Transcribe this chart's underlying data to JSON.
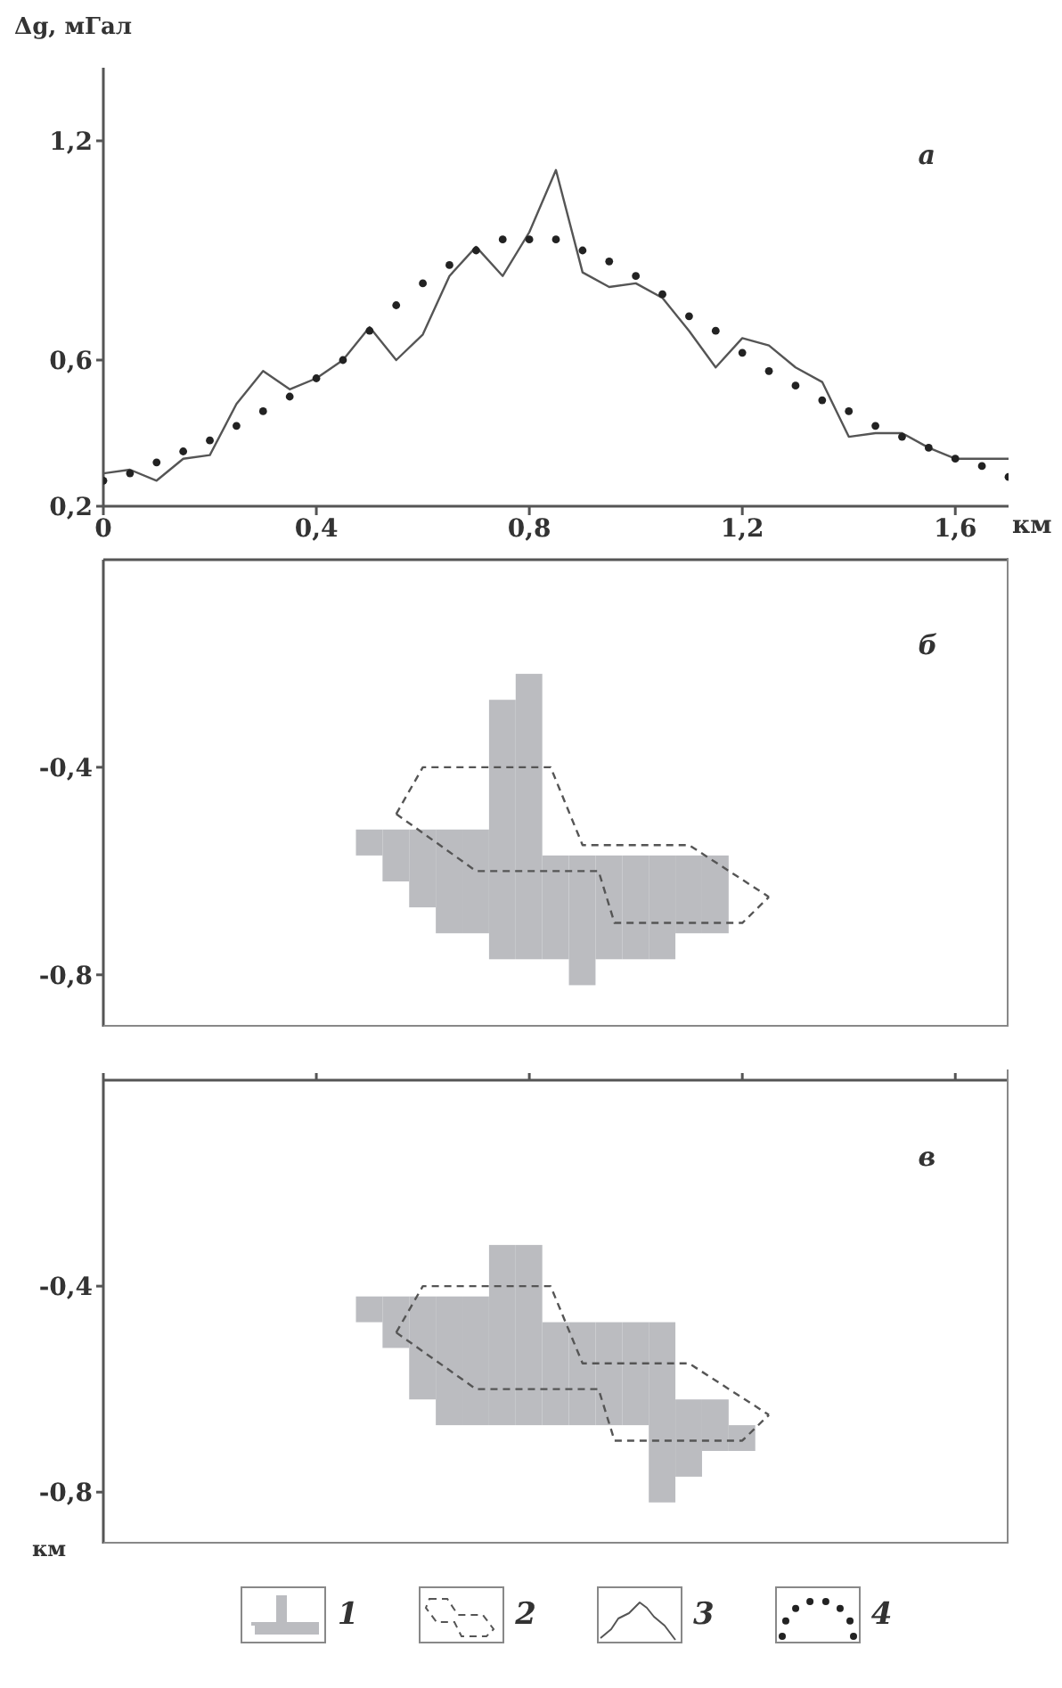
{
  "chart_data": [
    {
      "type": "line",
      "ylabel": "Δg, мГал",
      "xlabel": "км",
      "annotations": [
        "а"
      ],
      "legend": "bottom",
      "xlim": [
        0,
        1.7
      ],
      "xticks": [
        0,
        {
          "value": 0.4,
          "label": "0,4"
        },
        {
          "value": 0.8,
          "label": "0,8"
        },
        {
          "value": 1.2,
          "label": "1,2"
        },
        {
          "value": 1.6,
          "label": "1,6"
        }
      ],
      "ylim": [
        0.2,
        1.4
      ],
      "yticks": [
        {
          "value": 0.2,
          "label": "0,2"
        },
        {
          "value": 0.6,
          "label": "0,6"
        },
        {
          "value": 1.2,
          "label": "1,2"
        }
      ],
      "series": [
        {
          "name": "3",
          "line_style": "solid",
          "marker": "none",
          "color": "#555555",
          "x": [
            0,
            0.05,
            0.1,
            0.15,
            0.2,
            0.25,
            0.3,
            0.35,
            0.4,
            0.45,
            0.5,
            0.55,
            0.6,
            0.65,
            0.7,
            0.75,
            0.8,
            0.85,
            0.9,
            0.95,
            1.0,
            1.05,
            1.1,
            1.15,
            1.2,
            1.25,
            1.3,
            1.35,
            1.4,
            1.45,
            1.5,
            1.55,
            1.6,
            1.7
          ],
          "values": [
            0.29,
            0.3,
            0.27,
            0.33,
            0.34,
            0.48,
            0.57,
            0.52,
            0.55,
            0.6,
            0.69,
            0.6,
            0.67,
            0.83,
            0.91,
            0.83,
            0.95,
            1.12,
            0.84,
            0.8,
            0.81,
            0.77,
            0.68,
            0.58,
            0.66,
            0.64,
            0.58,
            0.54,
            0.39,
            0.4,
            0.4,
            0.36,
            0.33,
            0.33
          ]
        },
        {
          "name": "4",
          "type": "scatter",
          "marker": "circle",
          "color": "#222222",
          "x": [
            0,
            0.05,
            0.1,
            0.15,
            0.2,
            0.25,
            0.3,
            0.35,
            0.4,
            0.45,
            0.5,
            0.55,
            0.6,
            0.65,
            0.7,
            0.75,
            0.8,
            0.85,
            0.9,
            0.95,
            1.0,
            1.05,
            1.1,
            1.15,
            1.2,
            1.25,
            1.3,
            1.35,
            1.4,
            1.45,
            1.5,
            1.55,
            1.6,
            1.65,
            1.7
          ],
          "values": [
            0.27,
            0.29,
            0.32,
            0.35,
            0.38,
            0.42,
            0.46,
            0.5,
            0.55,
            0.6,
            0.68,
            0.75,
            0.81,
            0.86,
            0.9,
            0.93,
            0.93,
            0.93,
            0.9,
            0.87,
            0.83,
            0.78,
            0.72,
            0.68,
            0.62,
            0.57,
            0.53,
            0.49,
            0.46,
            0.42,
            0.39,
            0.36,
            0.33,
            0.31,
            0.28
          ]
        }
      ]
    },
    {
      "type": "bar",
      "annotations": [
        "б"
      ],
      "tick_labels": "y",
      "legend": "bottom",
      "xlim": [
        0,
        1.7
      ],
      "ylim": [
        -0.9,
        0
      ],
      "yticks": [
        {
          "value": -0.4,
          "label": "-0,4"
        },
        {
          "value": -0.8,
          "label": "-0,8"
        }
      ],
      "series": [
        {
          "name": "1",
          "color": "#bbbcc0",
          "x": [
            0.5,
            0.55,
            0.6,
            0.65,
            0.7,
            0.75,
            0.8,
            0.85,
            0.9,
            0.95,
            1.0,
            1.05,
            1.1,
            1.15
          ],
          "base": [
            -0.57,
            -0.62,
            -0.67,
            -0.72,
            -0.72,
            -0.77,
            -0.77,
            -0.77,
            -0.82,
            -0.77,
            -0.77,
            -0.77,
            -0.72,
            -0.72
          ],
          "values": [
            0.05,
            0.1,
            0.15,
            0.2,
            0.2,
            0.5,
            0.55,
            0.2,
            0.25,
            0.2,
            0.2,
            0.2,
            0.15,
            0.15
          ]
        },
        {
          "name": "2",
          "type": "line",
          "line_style": "dashed",
          "marker": "none",
          "color": "#555555",
          "x": [
            0.55,
            0.6,
            0.84,
            0.9,
            1.1,
            1.25
          ],
          "values": [
            -0.49,
            -0.4,
            -0.4,
            -0.55,
            -0.55,
            -0.65
          ]
        },
        {
          "type": "line",
          "line_style": "dashed",
          "marker": "none",
          "color": "#555555",
          "x": [
            0.55,
            0.7,
            0.93,
            0.96,
            1.2,
            1.25
          ],
          "values": [
            -0.49,
            -0.6,
            -0.6,
            -0.7,
            -0.7,
            -0.65
          ]
        }
      ]
    },
    {
      "type": "bar",
      "annotations": [
        "в"
      ],
      "ylabel": "км",
      "tick_labels": "y",
      "legend": "bottom",
      "xlim": [
        0,
        1.7
      ],
      "xticks": [
        {
          "value": 0,
          "label": null
        },
        {
          "value": 0.4,
          "label": null
        },
        {
          "value": 0.8,
          "label": null
        },
        {
          "value": 1.2,
          "label": null
        },
        {
          "value": 1.6,
          "label": null
        }
      ],
      "ylim": [
        -0.9,
        0
      ],
      "yticks": [
        {
          "value": -0.4,
          "label": "-0,4"
        },
        {
          "value": -0.8,
          "label": "-0,8"
        }
      ],
      "series": [
        {
          "name": "1",
          "color": "#bbbcc0",
          "x": [
            0.5,
            0.55,
            0.6,
            0.65,
            0.7,
            0.75,
            0.8,
            0.85,
            0.9,
            0.95,
            1.0,
            1.05,
            1.1,
            1.15,
            1.2
          ],
          "base": [
            -0.47,
            -0.52,
            -0.62,
            -0.67,
            -0.67,
            -0.67,
            -0.67,
            -0.67,
            -0.67,
            -0.67,
            -0.67,
            -0.82,
            -0.77,
            -0.72,
            -0.72
          ],
          "values": [
            0.05,
            0.1,
            0.2,
            0.25,
            0.25,
            0.35,
            0.35,
            0.2,
            0.2,
            0.2,
            0.2,
            0.35,
            0.15,
            0.1,
            0.05
          ]
        },
        {
          "name": "2",
          "type": "line",
          "line_style": "dashed",
          "marker": "none",
          "color": "#555555",
          "x": [
            0.55,
            0.6,
            0.84,
            0.9,
            1.1,
            1.25
          ],
          "values": [
            -0.49,
            -0.4,
            -0.4,
            -0.55,
            -0.55,
            -0.65
          ]
        },
        {
          "type": "line",
          "line_style": "dashed",
          "marker": "none",
          "color": "#555555",
          "x": [
            0.55,
            0.7,
            0.93,
            0.96,
            1.2,
            1.25
          ],
          "values": [
            -0.49,
            -0.6,
            -0.6,
            -0.7,
            -0.7,
            -0.65
          ]
        }
      ]
    }
  ]
}
